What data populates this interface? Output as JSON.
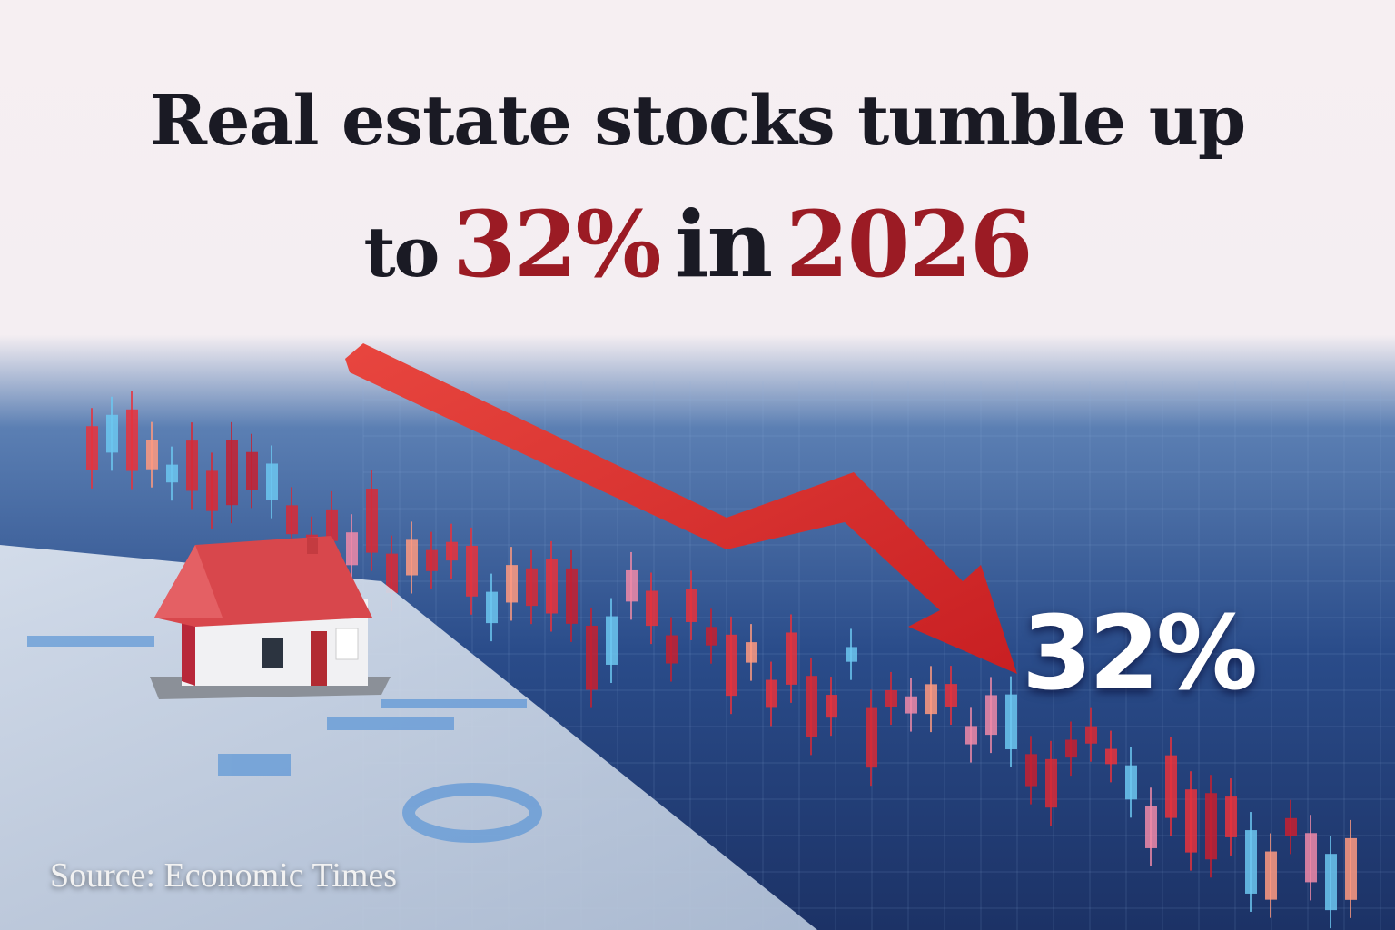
{
  "headline": {
    "line1": "Real estate stocks tumble up",
    "line2": [
      "to",
      "32%",
      "in",
      "2026"
    ]
  },
  "callout": "32%",
  "source": "Source: Economic Times"
}
